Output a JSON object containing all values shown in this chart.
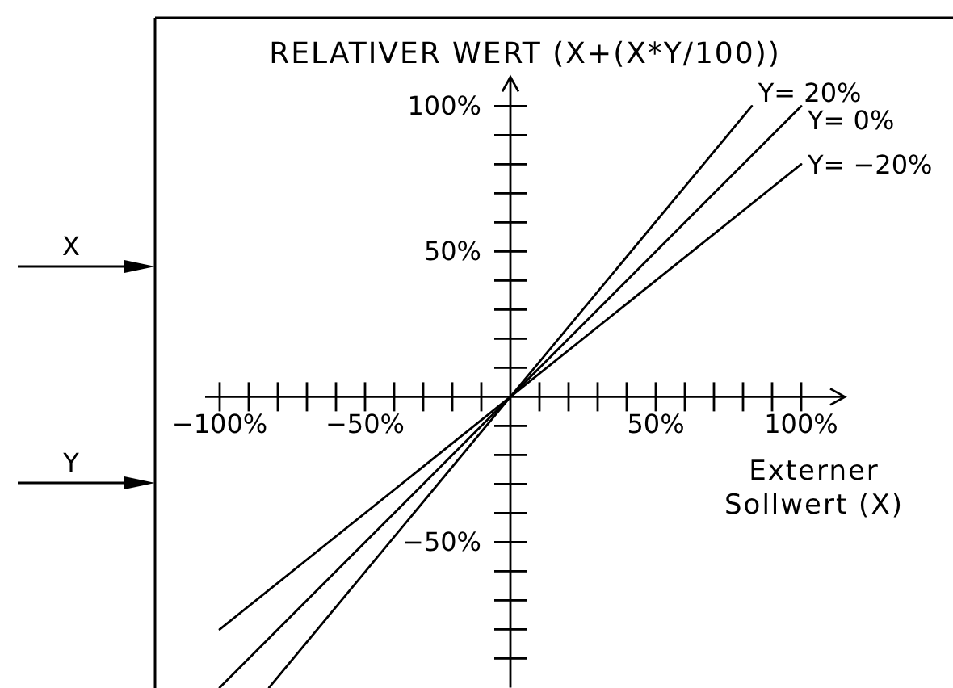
{
  "chart_data": {
    "type": "line",
    "title": "RELATIVER WERT (X+(X*Y/100))",
    "xlabel": "Externer Sollwert (X)",
    "annotations": [
      "X",
      "Y"
    ],
    "xlim": [
      -105,
      115
    ],
    "ylim": [
      -100,
      110
    ],
    "xticks": [
      {
        "value": -100,
        "label": "−100%"
      },
      {
        "value": -90,
        "label": null
      },
      {
        "value": -80,
        "label": null
      },
      {
        "value": -70,
        "label": null
      },
      {
        "value": -60,
        "label": null
      },
      {
        "value": -50,
        "label": "−50%"
      },
      {
        "value": -40,
        "label": null
      },
      {
        "value": -30,
        "label": null
      },
      {
        "value": -20,
        "label": null
      },
      {
        "value": -10,
        "label": null
      },
      {
        "value": 10,
        "label": null
      },
      {
        "value": 20,
        "label": null
      },
      {
        "value": 30,
        "label": null
      },
      {
        "value": 40,
        "label": null
      },
      {
        "value": 50,
        "label": "50%"
      },
      {
        "value": 60,
        "label": null
      },
      {
        "value": 70,
        "label": null
      },
      {
        "value": 80,
        "label": null
      },
      {
        "value": 90,
        "label": null
      },
      {
        "value": 100,
        "label": "100%"
      }
    ],
    "yticks": [
      {
        "value": -90,
        "label": null
      },
      {
        "value": -80,
        "label": null
      },
      {
        "value": -70,
        "label": null
      },
      {
        "value": -60,
        "label": null
      },
      {
        "value": -50,
        "label": "−50%"
      },
      {
        "value": -40,
        "label": null
      },
      {
        "value": -30,
        "label": null
      },
      {
        "value": -20,
        "label": null
      },
      {
        "value": -10,
        "label": null
      },
      {
        "value": 10,
        "label": null
      },
      {
        "value": 20,
        "label": null
      },
      {
        "value": 30,
        "label": null
      },
      {
        "value": 40,
        "label": null
      },
      {
        "value": 50,
        "label": "50%"
      },
      {
        "value": 60,
        "label": null
      },
      {
        "value": 70,
        "label": null
      },
      {
        "value": 80,
        "label": null
      },
      {
        "value": 90,
        "label": null
      },
      {
        "value": 100,
        "label": "100%"
      }
    ],
    "series": [
      {
        "name": "Y= 20%",
        "color": "#000000",
        "x": [
          -83,
          0,
          83
        ],
        "values": [
          -100,
          0,
          100
        ]
      },
      {
        "name": "Y= 0%",
        "color": "#000000",
        "x": [
          -100,
          0,
          100
        ],
        "values": [
          -100,
          0,
          100
        ]
      },
      {
        "name": "Y= −20%",
        "color": "#000000",
        "x": [
          -100,
          0,
          100
        ],
        "values": [
          -80,
          0,
          80
        ]
      }
    ]
  }
}
